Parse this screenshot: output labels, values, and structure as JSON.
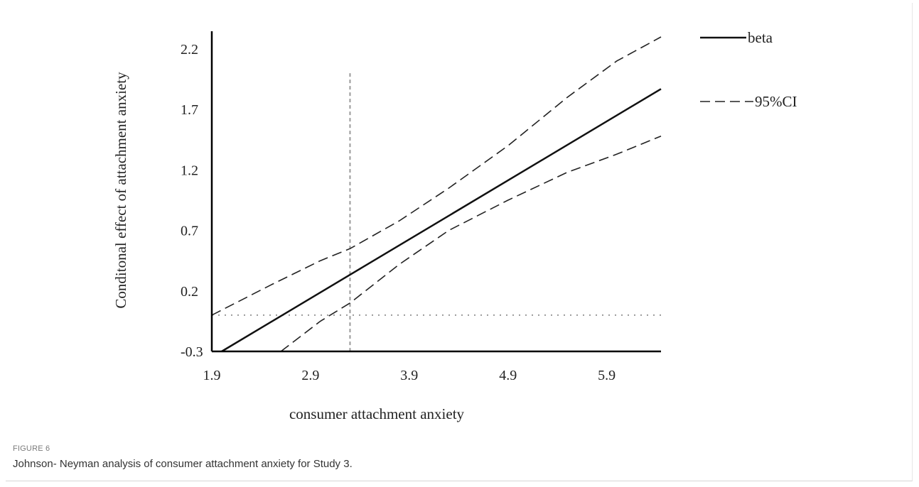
{
  "figure": {
    "label": "FIGURE 6",
    "caption": "Johnson- Neyman analysis of consumer attachment anxiety for Study 3."
  },
  "chart_data": {
    "type": "line",
    "title": "",
    "xlabel": "consumer attachment anxiety",
    "ylabel": "Conditonal effect of attachment anxiety",
    "xlim": [
      1.9,
      6.45
    ],
    "ylim": [
      -0.3,
      2.3
    ],
    "x_ticks": [
      "1.9",
      "2.9",
      "3.9",
      "4.9",
      "5.9"
    ],
    "y_ticks": [
      "2.2",
      "1.7",
      "1.2",
      "0.7",
      "0.2",
      "-0.3"
    ],
    "grid": false,
    "legend_position": "right",
    "colors": {
      "beta": "#111111",
      "ci": "#222222",
      "reference": "#9a9a9a"
    },
    "series": [
      {
        "name": "beta",
        "style": "solid",
        "x": [
          2.0,
          6.45
        ],
        "y": [
          -0.3,
          1.87
        ]
      },
      {
        "name": "95%CI",
        "style": "dashed",
        "x": [
          1.9,
          2.5,
          3.0,
          3.3,
          3.8,
          4.3,
          4.9,
          5.5,
          6.0,
          6.45
        ],
        "y": [
          0.0,
          0.25,
          0.45,
          0.55,
          0.78,
          1.05,
          1.4,
          1.8,
          2.1,
          2.3
        ]
      },
      {
        "name": "",
        "style": "dashed",
        "x": [
          2.6,
          3.0,
          3.3,
          3.8,
          4.3,
          4.9,
          5.5,
          6.0,
          6.45
        ],
        "y": [
          -0.3,
          -0.05,
          0.1,
          0.42,
          0.7,
          0.95,
          1.18,
          1.33,
          1.48
        ]
      }
    ],
    "reference_lines": [
      {
        "orientation": "horizontal",
        "value": 0.0,
        "style": "dotted"
      },
      {
        "orientation": "vertical",
        "value": 3.3,
        "style": "dashed",
        "y_range": [
          -0.3,
          2.0
        ]
      }
    ]
  }
}
